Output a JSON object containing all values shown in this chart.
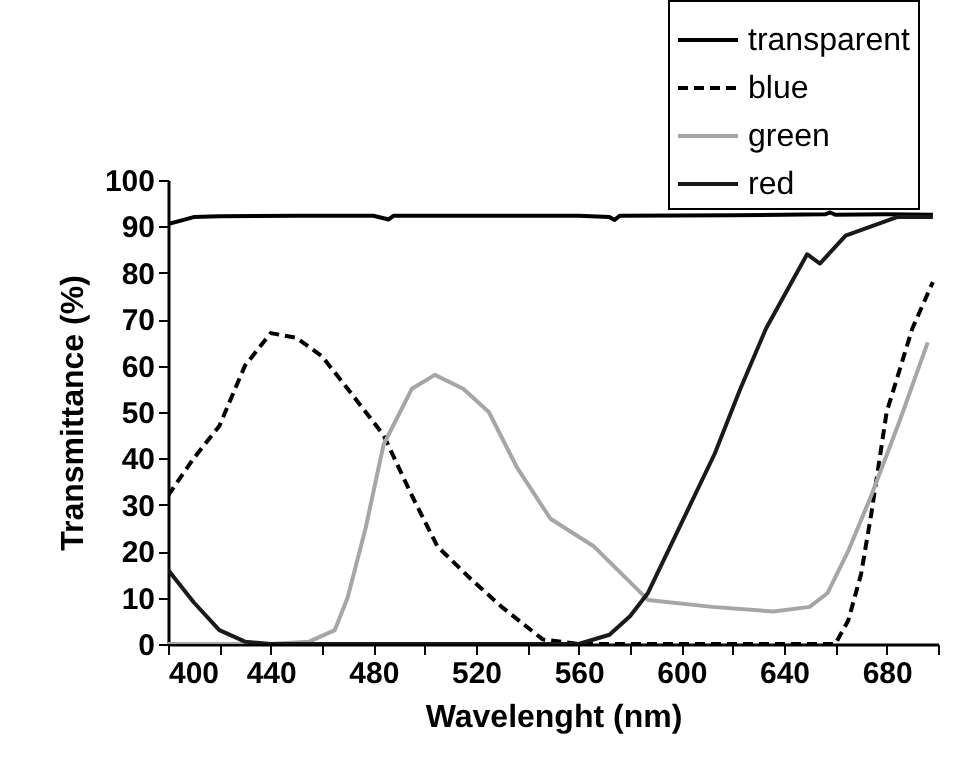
{
  "chart_data": {
    "type": "line",
    "xlabel": "Wavelenght (nm)",
    "ylabel": "Transmittance (%)",
    "xlim": [
      400,
      700
    ],
    "ylim": [
      0,
      100
    ],
    "xticks": [
      400,
      {
        "value": 420,
        "label": null
      },
      440,
      {
        "value": 460,
        "label": null
      },
      480,
      {
        "value": 500,
        "label": null
      },
      520,
      {
        "value": 540,
        "label": null
      },
      560,
      {
        "value": 580,
        "label": null
      },
      600,
      {
        "value": 620,
        "label": null
      },
      640,
      {
        "value": 660,
        "label": null
      },
      680,
      {
        "value": 700,
        "label": null
      }
    ],
    "yticks": [
      0,
      10,
      20,
      30,
      40,
      50,
      60,
      70,
      80,
      90,
      100
    ],
    "grid": false,
    "legend": "top right",
    "series": [
      {
        "name": "transparent",
        "color": "#000000",
        "line_style": "solid",
        "x": [
          400,
          410,
          420,
          450,
          480,
          486,
          488,
          490,
          520,
          560,
          572,
          574,
          576,
          620,
          656,
          658,
          660,
          680,
          698
        ],
        "values": [
          90.5,
          92,
          92.2,
          92.3,
          92.3,
          91.5,
          92.3,
          92.3,
          92.3,
          92.3,
          92,
          91.4,
          92.3,
          92.4,
          92.6,
          93,
          92.5,
          92.6,
          92.5
        ]
      },
      {
        "name": "blue",
        "color": "#000000",
        "line_style": "dashed",
        "x": [
          400,
          410,
          420,
          430,
          440,
          450,
          460,
          470,
          484,
          495,
          505,
          518,
          530,
          546,
          560,
          600,
          640,
          660,
          665,
          670,
          674,
          680,
          690,
          698
        ],
        "values": [
          32,
          40,
          47,
          60,
          67,
          66,
          62,
          55,
          45,
          32,
          21,
          14,
          8,
          1,
          0,
          0,
          0,
          0,
          5,
          15,
          28,
          50,
          68,
          78
        ]
      },
      {
        "name": "green",
        "color": "#a6a6a6",
        "line_style": "solid",
        "x": [
          400,
          440,
          455,
          465,
          470,
          477,
          484,
          495,
          504,
          515,
          525,
          536,
          549,
          566,
          587,
          612,
          636,
          650,
          657,
          665,
          674,
          685,
          696
        ],
        "values": [
          0,
          0,
          0.5,
          3,
          10,
          25,
          43,
          55,
          58,
          55,
          50,
          38,
          27,
          21,
          9.5,
          8,
          7,
          8,
          11,
          20,
          32,
          48,
          65
        ]
      },
      {
        "name": "red",
        "color": "#1a1a1a",
        "line_style": "solid",
        "x": [
          400,
          410,
          420,
          430,
          440,
          500,
          560,
          572,
          580,
          587,
          600,
          613,
          623,
          633,
          643,
          649,
          654,
          664,
          674,
          684,
          698
        ],
        "values": [
          16,
          9,
          3,
          0.5,
          0,
          0,
          0,
          2,
          6,
          11,
          26,
          41,
          55,
          68,
          78,
          84,
          82,
          88,
          90,
          92,
          92
        ]
      }
    ]
  }
}
